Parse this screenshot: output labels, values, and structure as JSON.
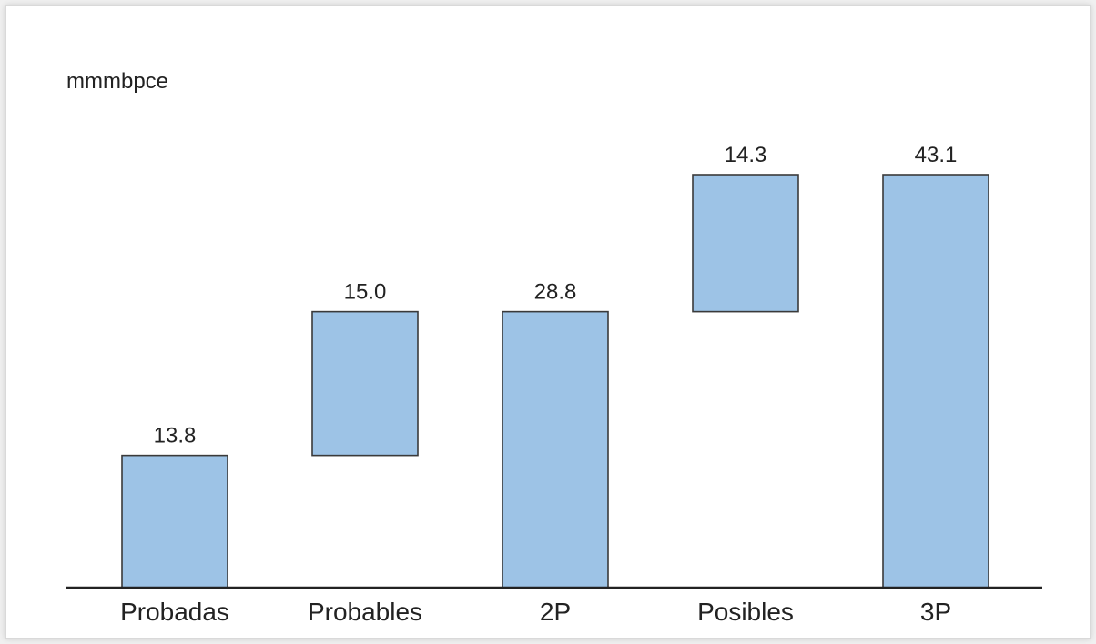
{
  "chart_data": {
    "type": "bar",
    "subtype": "waterfall",
    "unit_label": "mmmbpce",
    "categories": [
      "Probadas",
      "Probables",
      "2P",
      "Posibles",
      "3P"
    ],
    "values": [
      13.8,
      15.0,
      28.8,
      14.3,
      43.1
    ],
    "bar_kind": [
      "increment",
      "increment",
      "total",
      "increment",
      "total"
    ],
    "value_labels": [
      "13.8",
      "15.0",
      "28.8",
      "14.3",
      "43.1"
    ],
    "ylim": [
      0,
      43.1
    ],
    "grid": false,
    "legend": "none",
    "colors": {
      "bar_fill": "#9dc3e6",
      "bar_stroke": "#3a3a3a",
      "axis": "#222222"
    }
  }
}
